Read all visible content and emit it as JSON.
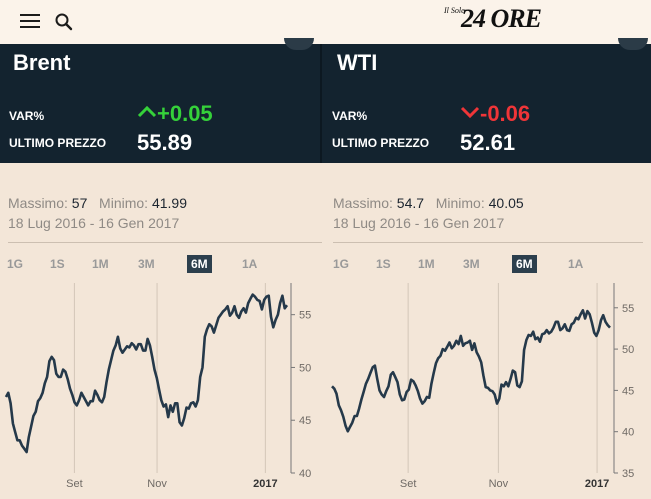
{
  "header": {
    "menu_icon": "hamburger-menu-icon",
    "search_icon": "search-icon",
    "brand_small": "Il Sole",
    "brand_big": "24 ORE"
  },
  "cards": [
    {
      "name": "Brent",
      "var_label": "VAR%",
      "var_value": "+0.05",
      "var_direction": "up",
      "var_color": "#35d13a",
      "price_label": "ULTIMO PREZZO",
      "price_value": "55.89",
      "max_label": "Massimo:",
      "max_value": "57",
      "min_label": "Minimo:",
      "min_value": "41.99",
      "date_range": "18 Lug 2016 - 16 Gen 2017",
      "tabs": [
        "1G",
        "1S",
        "1M",
        "3M",
        "6M",
        "1A"
      ],
      "active_tab": "6M"
    },
    {
      "name": "WTI",
      "var_label": "VAR%",
      "var_value": "-0.06",
      "var_direction": "down",
      "var_color": "#ef3538",
      "price_label": "ULTIMO PREZZO",
      "price_value": "52.61",
      "max_label": "Massimo:",
      "max_value": "54.7",
      "min_label": "Minimo:",
      "min_value": "40.05",
      "date_range": "18 Lug 2016 - 16 Gen 2017",
      "tabs": [
        "1G",
        "1S",
        "1M",
        "3M",
        "6M",
        "1A"
      ],
      "active_tab": "6M"
    }
  ],
  "chart_data": [
    {
      "type": "line",
      "x_ticks": [
        "Set",
        "Nov",
        "2017"
      ],
      "x_tick_positions": [
        0.24,
        0.53,
        0.91
      ],
      "y_ticks": [
        40,
        45,
        50,
        55
      ],
      "ylim": [
        40,
        58
      ],
      "grid": true,
      "line_color": "#25394a",
      "values": [
        47.2,
        47.6,
        46.6,
        44.7,
        43.9,
        43.1,
        43.1,
        42.6,
        42.3,
        41.99,
        43.4,
        44.4,
        45.4,
        45.8,
        46.8,
        47.1,
        47.6,
        48.5,
        49.1,
        50.6,
        51.0,
        50.7,
        49.4,
        49.1,
        49.1,
        49.8,
        49.6,
        48.9,
        48.0,
        47.4,
        46.7,
        46.4,
        46.9,
        47.6,
        47.2,
        46.8,
        46.4,
        46.8,
        46.8,
        47.8,
        47.4,
        46.9,
        46.7,
        47.2,
        48.6,
        49.8,
        50.7,
        51.6,
        52.1,
        52.9,
        51.8,
        51.4,
        51.7,
        52.0,
        51.9,
        52.3,
        52.1,
        51.7,
        52.2,
        52.2,
        51.6,
        51.6,
        52.7,
        52.1,
        51.0,
        49.8,
        49.0,
        47.9,
        46.9,
        46.3,
        46.5,
        45.3,
        46.4,
        45.8,
        46.6,
        46.6,
        44.8,
        44.5,
        45.2,
        46.2,
        46.1,
        46.6,
        46.7,
        46.3,
        46.9,
        49.1,
        50.0,
        52.9,
        53.6,
        54.1,
        53.9,
        53.3,
        54.0,
        54.7,
        55.0,
        55.3,
        55.5,
        55.8,
        54.9,
        55.2,
        55.8,
        55.0,
        54.7,
        55.3,
        55.6,
        55.2,
        56.1,
        56.5,
        56.9,
        56.7,
        56.4,
        56.3,
        55.5,
        56.4,
        56.7,
        56.8,
        54.8,
        53.8,
        54.5,
        55.0,
        56.1,
        56.8,
        55.6,
        55.9
      ]
    },
    {
      "type": "line",
      "x_ticks": [
        "Set",
        "Nov",
        "2017"
      ],
      "x_tick_positions": [
        0.27,
        0.59,
        0.94
      ],
      "y_ticks": [
        35,
        40,
        45,
        50,
        55
      ],
      "ylim": [
        35,
        58
      ],
      "grid": true,
      "line_color": "#25394a",
      "values": [
        45.5,
        45.2,
        44.6,
        43.2,
        42.6,
        41.8,
        40.7,
        40.05,
        40.6,
        41.1,
        41.9,
        41.9,
        42.8,
        43.9,
        44.8,
        45.8,
        46.4,
        47.1,
        47.8,
        48.0,
        46.4,
        45.0,
        44.5,
        44.2,
        44.9,
        45.5,
        46.9,
        47.2,
        46.6,
        46.0,
        44.5,
        43.8,
        43.9,
        44.8,
        45.1,
        46.3,
        46.1,
        45.6,
        44.9,
        44.0,
        43.4,
        43.7,
        44.2,
        44.1,
        45.8,
        47.1,
        48.3,
        48.9,
        49.2,
        50.0,
        49.8,
        50.3,
        50.8,
        50.1,
        50.4,
        51.0,
        50.6,
        51.6,
        50.4,
        50.7,
        50.8,
        51.0,
        49.9,
        50.7,
        49.6,
        49.1,
        48.4,
        46.8,
        45.4,
        45.3,
        45.0,
        44.9,
        44.5,
        43.4,
        44.0,
        45.7,
        45.5,
        46.0,
        45.5,
        46.4,
        47.4,
        47.2,
        45.6,
        45.4,
        46.1,
        49.9,
        51.1,
        51.7,
        51.6,
        52.1,
        51.2,
        51.4,
        50.9,
        51.8,
        51.9,
        52.3,
        51.9,
        52.1,
        52.6,
        53.3,
        53.3,
        52.3,
        52.5,
        53.0,
        52.3,
        52.2,
        53.0,
        53.2,
        53.8,
        53.6,
        54.2,
        54.7,
        53.7,
        54.6,
        54.2,
        53.2,
        52.0,
        51.6,
        52.3,
        53.5,
        54.1,
        53.3,
        52.9,
        52.6
      ]
    }
  ]
}
